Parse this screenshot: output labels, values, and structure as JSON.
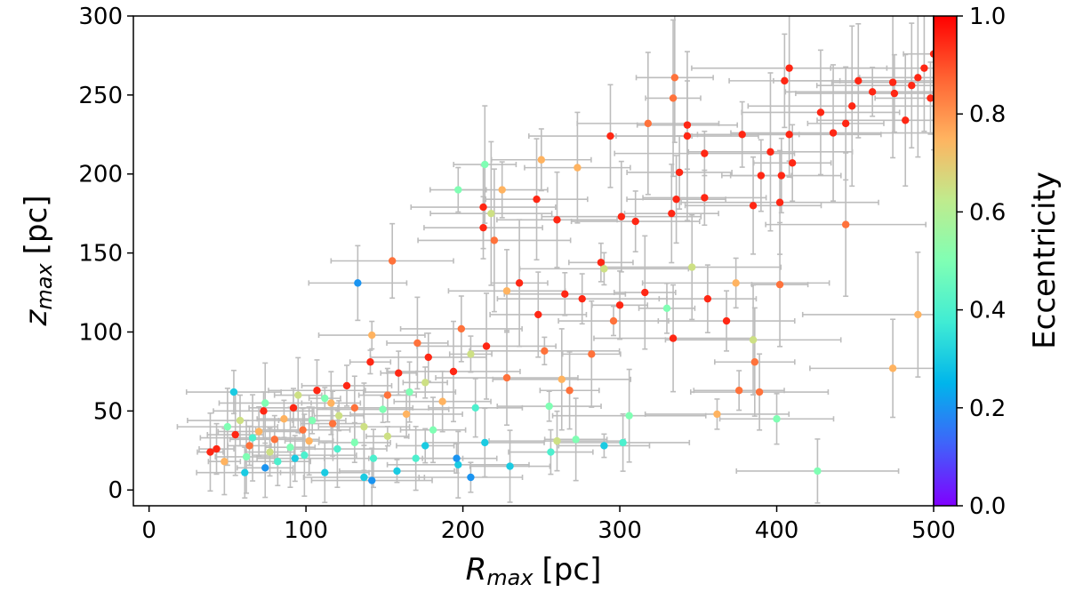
{
  "chart_data": {
    "type": "scatter",
    "xlabel_main": "R",
    "xlabel_sub": "max",
    "xlabel_unit": "[pc]",
    "ylabel_main": "z",
    "ylabel_sub": "max",
    "ylabel_unit": "[pc]",
    "xlim": [
      -10,
      500
    ],
    "ylim": [
      -10,
      300
    ],
    "xticks": [
      0,
      100,
      200,
      300,
      400,
      500
    ],
    "yticks": [
      0,
      50,
      100,
      150,
      200,
      250,
      300
    ],
    "grid": false,
    "errorbar_color": "#bdbdbd",
    "colormap": "rainbow",
    "colorbar": {
      "label": "Eccentricity",
      "range": [
        0.0,
        1.0
      ],
      "ticks": [
        "0.0",
        "0.2",
        "0.4",
        "0.6",
        "0.8",
        "1.0"
      ]
    },
    "points": [
      {
        "x": 500,
        "y": 276,
        "e": 0.95
      },
      {
        "x": 498,
        "y": 248,
        "e": 0.95
      },
      {
        "x": 494,
        "y": 267,
        "e": 0.95
      },
      {
        "x": 490,
        "y": 261,
        "e": 0.95
      },
      {
        "x": 486,
        "y": 256,
        "e": 0.95
      },
      {
        "x": 482,
        "y": 234,
        "e": 0.95
      },
      {
        "x": 475,
        "y": 251,
        "e": 0.95
      },
      {
        "x": 474,
        "y": 258,
        "e": 0.95
      },
      {
        "x": 461,
        "y": 252,
        "e": 0.95
      },
      {
        "x": 452,
        "y": 259,
        "e": 0.95
      },
      {
        "x": 448,
        "y": 243,
        "e": 0.95
      },
      {
        "x": 444,
        "y": 232,
        "e": 0.95
      },
      {
        "x": 436,
        "y": 226,
        "e": 0.95
      },
      {
        "x": 428,
        "y": 239,
        "e": 0.95
      },
      {
        "x": 408,
        "y": 267,
        "e": 0.95
      },
      {
        "x": 405,
        "y": 259,
        "e": 0.95
      },
      {
        "x": 408,
        "y": 225,
        "e": 0.95
      },
      {
        "x": 410,
        "y": 207,
        "e": 0.95
      },
      {
        "x": 403,
        "y": 199,
        "e": 0.95
      },
      {
        "x": 402,
        "y": 182,
        "e": 0.95
      },
      {
        "x": 396,
        "y": 214,
        "e": 0.95
      },
      {
        "x": 390,
        "y": 199,
        "e": 0.95
      },
      {
        "x": 385,
        "y": 180,
        "e": 0.95
      },
      {
        "x": 378,
        "y": 225,
        "e": 0.95
      },
      {
        "x": 354,
        "y": 213,
        "e": 0.95
      },
      {
        "x": 343,
        "y": 231,
        "e": 0.95
      },
      {
        "x": 343,
        "y": 224,
        "e": 0.95
      },
      {
        "x": 354,
        "y": 185,
        "e": 0.95
      },
      {
        "x": 338,
        "y": 201,
        "e": 0.95
      },
      {
        "x": 336,
        "y": 184,
        "e": 0.95
      },
      {
        "x": 333,
        "y": 175,
        "e": 0.95
      },
      {
        "x": 310,
        "y": 170,
        "e": 0.95
      },
      {
        "x": 294,
        "y": 224,
        "e": 0.95
      },
      {
        "x": 301,
        "y": 173,
        "e": 0.95
      },
      {
        "x": 260,
        "y": 171,
        "e": 0.95
      },
      {
        "x": 247,
        "y": 184,
        "e": 0.95
      },
      {
        "x": 213,
        "y": 179,
        "e": 0.95
      },
      {
        "x": 213,
        "y": 166,
        "e": 0.95
      },
      {
        "x": 368,
        "y": 107,
        "e": 0.95
      },
      {
        "x": 356,
        "y": 121,
        "e": 0.95
      },
      {
        "x": 334,
        "y": 96,
        "e": 0.95
      },
      {
        "x": 316,
        "y": 125,
        "e": 0.95
      },
      {
        "x": 300,
        "y": 117,
        "e": 0.95
      },
      {
        "x": 288,
        "y": 144,
        "e": 0.95
      },
      {
        "x": 276,
        "y": 121,
        "e": 0.95
      },
      {
        "x": 265,
        "y": 124,
        "e": 0.95
      },
      {
        "x": 248,
        "y": 111,
        "e": 0.95
      },
      {
        "x": 236,
        "y": 131,
        "e": 0.95
      },
      {
        "x": 215,
        "y": 91,
        "e": 0.95
      },
      {
        "x": 194,
        "y": 75,
        "e": 0.95
      },
      {
        "x": 178,
        "y": 84,
        "e": 0.95
      },
      {
        "x": 159,
        "y": 74,
        "e": 0.95
      },
      {
        "x": 141,
        "y": 81,
        "e": 0.95
      },
      {
        "x": 126,
        "y": 66,
        "e": 0.95
      },
      {
        "x": 107,
        "y": 63,
        "e": 0.95
      },
      {
        "x": 92,
        "y": 52,
        "e": 0.95
      },
      {
        "x": 73,
        "y": 50,
        "e": 0.95
      },
      {
        "x": 55,
        "y": 35,
        "e": 0.95
      },
      {
        "x": 43,
        "y": 26,
        "e": 0.95
      },
      {
        "x": 39,
        "y": 24,
        "e": 0.95
      },
      {
        "x": 444,
        "y": 168,
        "e": 0.85
      },
      {
        "x": 402,
        "y": 130,
        "e": 0.85
      },
      {
        "x": 386,
        "y": 81,
        "e": 0.85
      },
      {
        "x": 389,
        "y": 62,
        "e": 0.85
      },
      {
        "x": 376,
        "y": 63,
        "e": 0.85
      },
      {
        "x": 335,
        "y": 261,
        "e": 0.85
      },
      {
        "x": 334,
        "y": 248,
        "e": 0.85
      },
      {
        "x": 318,
        "y": 232,
        "e": 0.85
      },
      {
        "x": 296,
        "y": 107,
        "e": 0.85
      },
      {
        "x": 282,
        "y": 86,
        "e": 0.85
      },
      {
        "x": 268,
        "y": 63,
        "e": 0.85
      },
      {
        "x": 252,
        "y": 88,
        "e": 0.85
      },
      {
        "x": 228,
        "y": 71,
        "e": 0.85
      },
      {
        "x": 220,
        "y": 158,
        "e": 0.85
      },
      {
        "x": 199,
        "y": 102,
        "e": 0.85
      },
      {
        "x": 171,
        "y": 93,
        "e": 0.85
      },
      {
        "x": 155,
        "y": 145,
        "e": 0.85
      },
      {
        "x": 152,
        "y": 60,
        "e": 0.85
      },
      {
        "x": 131,
        "y": 52,
        "e": 0.85
      },
      {
        "x": 117,
        "y": 42,
        "e": 0.85
      },
      {
        "x": 98,
        "y": 38,
        "e": 0.85
      },
      {
        "x": 80,
        "y": 32,
        "e": 0.85
      },
      {
        "x": 64,
        "y": 28,
        "e": 0.85
      },
      {
        "x": 490,
        "y": 111,
        "e": 0.75
      },
      {
        "x": 474,
        "y": 77,
        "e": 0.75
      },
      {
        "x": 374,
        "y": 131,
        "e": 0.75
      },
      {
        "x": 362,
        "y": 48,
        "e": 0.75
      },
      {
        "x": 273,
        "y": 204,
        "e": 0.75
      },
      {
        "x": 263,
        "y": 70,
        "e": 0.75
      },
      {
        "x": 250,
        "y": 209,
        "e": 0.75
      },
      {
        "x": 225,
        "y": 190,
        "e": 0.75
      },
      {
        "x": 228,
        "y": 126,
        "e": 0.75
      },
      {
        "x": 187,
        "y": 56,
        "e": 0.75
      },
      {
        "x": 164,
        "y": 48,
        "e": 0.75
      },
      {
        "x": 142,
        "y": 98,
        "e": 0.75
      },
      {
        "x": 116,
        "y": 55,
        "e": 0.75
      },
      {
        "x": 102,
        "y": 31,
        "e": 0.75
      },
      {
        "x": 86,
        "y": 45,
        "e": 0.75
      },
      {
        "x": 70,
        "y": 37,
        "e": 0.75
      },
      {
        "x": 48,
        "y": 18,
        "e": 0.75
      },
      {
        "x": 385,
        "y": 95,
        "e": 0.65
      },
      {
        "x": 346,
        "y": 141,
        "e": 0.65
      },
      {
        "x": 290,
        "y": 140,
        "e": 0.65
      },
      {
        "x": 260,
        "y": 31,
        "e": 0.65
      },
      {
        "x": 218,
        "y": 175,
        "e": 0.65
      },
      {
        "x": 205,
        "y": 86,
        "e": 0.65
      },
      {
        "x": 176,
        "y": 68,
        "e": 0.65
      },
      {
        "x": 152,
        "y": 34,
        "e": 0.65
      },
      {
        "x": 137,
        "y": 40,
        "e": 0.65
      },
      {
        "x": 121,
        "y": 47,
        "e": 0.65
      },
      {
        "x": 95,
        "y": 60,
        "e": 0.65
      },
      {
        "x": 77,
        "y": 24,
        "e": 0.65
      },
      {
        "x": 58,
        "y": 44,
        "e": 0.65
      },
      {
        "x": 426,
        "y": 12,
        "e": 0.5
      },
      {
        "x": 400,
        "y": 45,
        "e": 0.5
      },
      {
        "x": 330,
        "y": 115,
        "e": 0.5
      },
      {
        "x": 306,
        "y": 47,
        "e": 0.5
      },
      {
        "x": 272,
        "y": 32,
        "e": 0.5
      },
      {
        "x": 255,
        "y": 53,
        "e": 0.5
      },
      {
        "x": 214,
        "y": 206,
        "e": 0.5
      },
      {
        "x": 197,
        "y": 190,
        "e": 0.5
      },
      {
        "x": 181,
        "y": 38,
        "e": 0.5
      },
      {
        "x": 166,
        "y": 62,
        "e": 0.5
      },
      {
        "x": 149,
        "y": 51,
        "e": 0.5
      },
      {
        "x": 131,
        "y": 30,
        "e": 0.5
      },
      {
        "x": 112,
        "y": 58,
        "e": 0.5
      },
      {
        "x": 104,
        "y": 44,
        "e": 0.5
      },
      {
        "x": 90,
        "y": 27,
        "e": 0.5
      },
      {
        "x": 74,
        "y": 55,
        "e": 0.5
      },
      {
        "x": 62,
        "y": 21,
        "e": 0.5
      },
      {
        "x": 50,
        "y": 40,
        "e": 0.5
      },
      {
        "x": 302,
        "y": 30,
        "e": 0.4
      },
      {
        "x": 256,
        "y": 24,
        "e": 0.4
      },
      {
        "x": 208,
        "y": 52,
        "e": 0.4
      },
      {
        "x": 170,
        "y": 20,
        "e": 0.4
      },
      {
        "x": 143,
        "y": 20,
        "e": 0.4
      },
      {
        "x": 120,
        "y": 26,
        "e": 0.4
      },
      {
        "x": 99,
        "y": 22,
        "e": 0.4
      },
      {
        "x": 82,
        "y": 18,
        "e": 0.4
      },
      {
        "x": 66,
        "y": 33,
        "e": 0.4
      },
      {
        "x": 290,
        "y": 28,
        "e": 0.3
      },
      {
        "x": 230,
        "y": 15,
        "e": 0.3
      },
      {
        "x": 214,
        "y": 30,
        "e": 0.3
      },
      {
        "x": 197,
        "y": 16,
        "e": 0.3
      },
      {
        "x": 176,
        "y": 28,
        "e": 0.3
      },
      {
        "x": 158,
        "y": 12,
        "e": 0.3
      },
      {
        "x": 137,
        "y": 8,
        "e": 0.3
      },
      {
        "x": 112,
        "y": 11,
        "e": 0.3
      },
      {
        "x": 93,
        "y": 20,
        "e": 0.3
      },
      {
        "x": 61,
        "y": 11,
        "e": 0.3
      },
      {
        "x": 54,
        "y": 62,
        "e": 0.3
      },
      {
        "x": 133,
        "y": 131,
        "e": 0.2
      },
      {
        "x": 196,
        "y": 20,
        "e": 0.2
      },
      {
        "x": 205,
        "y": 8,
        "e": 0.2
      },
      {
        "x": 142,
        "y": 6,
        "e": 0.2
      },
      {
        "x": 74,
        "y": 14,
        "e": 0.2
      }
    ]
  }
}
